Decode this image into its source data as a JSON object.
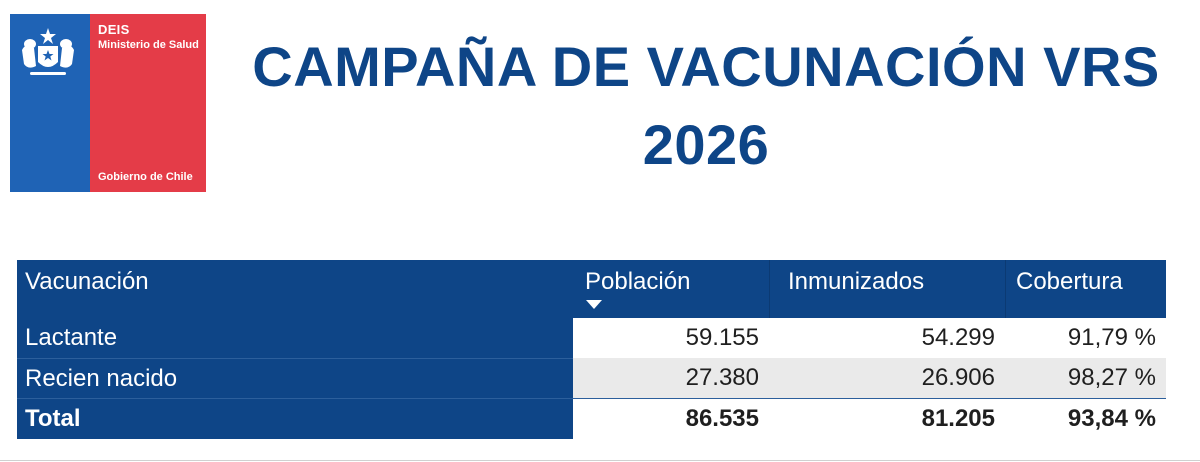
{
  "logo": {
    "org": "DEIS",
    "ministry": "Ministerio de Salud",
    "government": "Gobierno de Chile",
    "colors": {
      "blue": "#1f63b5",
      "red": "#e43c48"
    }
  },
  "title": {
    "line1": "CAMPAÑA DE VACUNACIÓN VRS",
    "line2": "2026",
    "color": "#0e4587"
  },
  "table": {
    "columns": [
      "Vacunación",
      "Población",
      "Inmunizados",
      "Cobertura"
    ],
    "sorted_column": "Población",
    "rows": [
      {
        "label": "Lactante",
        "poblacion": "59.155",
        "inmunizados": "54.299",
        "cobertura": "91,79 %"
      },
      {
        "label": "Recien nacido",
        "poblacion": "27.380",
        "inmunizados": "26.906",
        "cobertura": "98,27 %"
      }
    ],
    "total": {
      "label": "Total",
      "poblacion": "86.535",
      "inmunizados": "81.205",
      "cobertura": "93,84 %"
    },
    "header_color": "#0e4587"
  }
}
